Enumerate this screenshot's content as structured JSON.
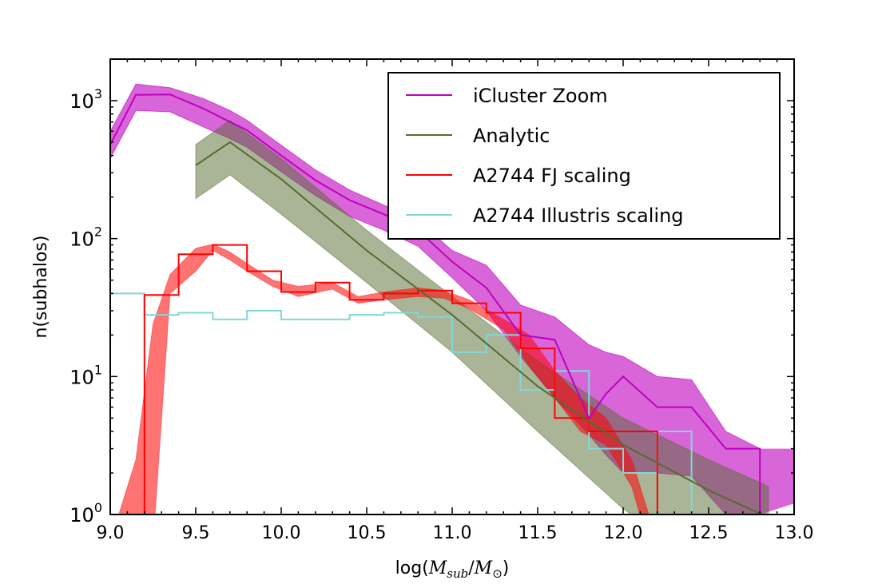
{
  "chart_data": {
    "type": "line",
    "title": "",
    "xlabel": "log(",
    "xlabel_math": "M_sub/M_⊙",
    "xlabel_close": ")",
    "xlabel_parts": {
      "open": "log(",
      "m1": "M",
      "sub1": "sub",
      "slash": "/",
      "m2": "M",
      "sub2": "⊙",
      "close": ")"
    },
    "ylabel": "n(subhalos)",
    "xlim": [
      9.0,
      13.0
    ],
    "ylim": [
      1,
      2000
    ],
    "yscale": "log",
    "xticks": [
      9.0,
      9.5,
      10.0,
      10.5,
      11.0,
      11.5,
      12.0,
      12.5,
      13.0
    ],
    "xtick_labels": [
      "9.0",
      "9.5",
      "10.0",
      "10.5",
      "11.0",
      "11.5",
      "12.0",
      "12.5",
      "13.0"
    ],
    "yticks": [
      1,
      10,
      100,
      1000
    ],
    "ytick_labels": [
      {
        "base": "10",
        "exp": "0"
      },
      {
        "base": "10",
        "exp": "1"
      },
      {
        "base": "10",
        "exp": "2"
      },
      {
        "base": "10",
        "exp": "3"
      }
    ],
    "legend": {
      "position": "top-right",
      "entries": [
        {
          "label": "iCluster Zoom",
          "color": "#bf00bf"
        },
        {
          "label": "Analytic",
          "color": "#556b2f"
        },
        {
          "label": "A2744 FJ scaling",
          "color": "#ff0000"
        },
        {
          "label": "A2744 Illustris scaling",
          "color": "#7fd8d8"
        }
      ]
    },
    "colors": {
      "icluster_line": "#bf00bf",
      "icluster_band": "#bf00bf",
      "analytic_line": "#556b2f",
      "analytic_band": "#556b2f",
      "fj_line": "#ff0000",
      "fj_band": "#ff0000",
      "illustris_line": "#7fd8d8"
    },
    "series": [
      {
        "name": "iCluster Zoom",
        "kind": "line_band",
        "x": [
          9.0,
          9.15,
          9.35,
          9.55,
          9.7,
          9.8,
          10.0,
          10.2,
          10.4,
          10.6,
          10.8,
          11.0,
          11.2,
          11.4,
          11.6,
          11.8,
          11.9,
          12.0,
          12.2,
          12.4,
          12.6,
          12.8
        ],
        "y": [
          480,
          1100,
          1110,
          870,
          700,
          610,
          400,
          265,
          190,
          150,
          115,
          68,
          44,
          20,
          18.5,
          5.0,
          7.5,
          10.0,
          6.0,
          6.0,
          3.0,
          3.0
        ],
        "lower": [
          380,
          850,
          830,
          640,
          530,
          460,
          305,
          205,
          145,
          115,
          88,
          52,
          30,
          14,
          7.0,
          3.8,
          2.7,
          2.0,
          2.0,
          1.9,
          1.0,
          1.0
        ],
        "upper": [
          600,
          1320,
          1240,
          1030,
          850,
          720,
          475,
          315,
          225,
          175,
          135,
          82,
          64,
          33,
          27,
          17,
          15,
          14,
          10,
          9.5,
          4.0,
          3.0
        ],
        "tail_x": [
          12.8,
          13.0
        ],
        "tail_lower": [
          1.0,
          1.2
        ],
        "tail_upper": [
          3.0,
          3.0
        ]
      },
      {
        "name": "Analytic",
        "kind": "line_band",
        "x": [
          9.5,
          9.7,
          10.0,
          10.5,
          11.0,
          11.5,
          12.0,
          12.5,
          12.85
        ],
        "y": [
          340,
          500,
          270,
          82,
          28,
          8.5,
          3.2,
          1.5,
          0.95
        ],
        "lower": [
          195,
          290,
          150,
          48,
          15,
          4.0,
          1.1,
          0.4,
          0.3
        ],
        "upper": [
          480,
          720,
          380,
          115,
          38,
          13,
          5.0,
          2.5,
          1.6
        ]
      },
      {
        "name": "A2744 FJ scaling",
        "kind": "step_band",
        "edges": [
          9.2,
          9.4,
          9.6,
          9.8,
          10.0,
          10.2,
          10.4,
          10.6,
          10.8,
          11.0,
          11.2,
          11.4,
          11.6,
          11.8,
          12.0,
          12.2
        ],
        "values": [
          39,
          77,
          90,
          58,
          41,
          48,
          36,
          40,
          42,
          34,
          29,
          16,
          5,
          4,
          4
        ],
        "band_x": [
          9.05,
          9.15,
          9.25,
          9.35,
          9.5,
          9.6,
          9.7,
          9.8,
          9.95,
          10.1,
          10.3,
          10.45,
          10.6,
          10.8,
          10.95,
          11.1,
          11.3,
          11.45,
          11.6,
          11.75,
          11.9,
          12.05,
          12.15
        ],
        "band_lower": [
          0.6,
          0.5,
          0.6,
          40,
          58,
          82,
          70,
          58,
          45,
          38,
          43,
          34,
          36,
          38,
          37,
          31,
          22,
          12,
          7.0,
          4.0,
          3.2,
          1.6,
          0.6
        ],
        "band_upper": [
          1.0,
          2.5,
          24,
          55,
          85,
          91,
          80,
          66,
          50,
          45,
          48,
          38,
          41,
          44,
          42,
          36,
          26,
          20,
          11,
          7.0,
          5.0,
          2.5,
          1.0
        ]
      },
      {
        "name": "A2744 Illustris scaling",
        "kind": "step",
        "edges": [
          9.0,
          9.2,
          9.4,
          9.6,
          9.8,
          10.0,
          10.2,
          10.4,
          10.6,
          10.8,
          11.0,
          11.2,
          11.4,
          11.6,
          11.8,
          12.0,
          12.2,
          12.4
        ],
        "values": [
          40,
          28,
          29,
          26,
          30,
          26,
          26,
          28,
          29,
          27,
          15,
          20,
          8,
          11,
          3,
          2,
          4
        ]
      }
    ]
  }
}
